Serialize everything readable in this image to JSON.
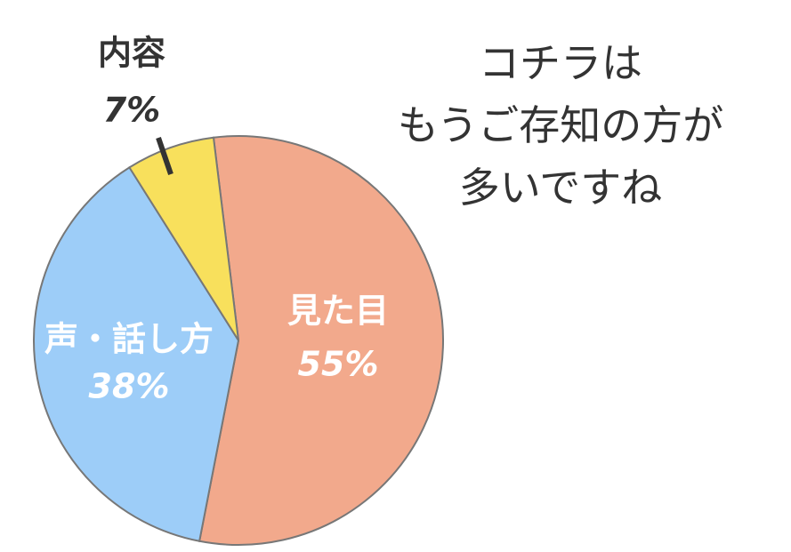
{
  "chart_data": {
    "type": "pie",
    "categories": [
      "見た目",
      "声・話し方",
      "内容"
    ],
    "values": [
      55,
      38,
      7
    ],
    "value_labels": [
      "55%",
      "38%",
      "7%"
    ],
    "colors": [
      "#f2a98c",
      "#9dcdf8",
      "#f8e05c"
    ],
    "annotation": [
      "コチラは",
      "もうご存知の方が",
      "多いですね"
    ]
  }
}
